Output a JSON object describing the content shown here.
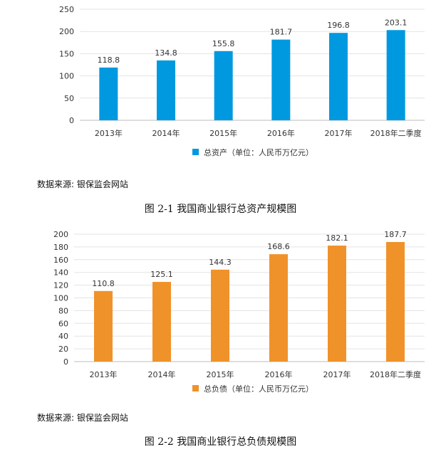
{
  "figures": [
    {
      "source": "数据来源: 银保监会网站",
      "caption": "图 2-1 我国商业银行总资产规模图"
    },
    {
      "source": "数据来源: 银保监会网站",
      "caption": "图 2-2 我国商业银行总负债规模图"
    }
  ],
  "chart_data": [
    {
      "type": "bar",
      "categories": [
        "2013年",
        "2014年",
        "2015年",
        "2016年",
        "2017年",
        "2018年二季度"
      ],
      "series": [
        {
          "name": "总资产（单位：人民币万亿元）",
          "values": [
            118.8,
            134.8,
            155.8,
            181.7,
            196.8,
            203.1
          ],
          "color": "#0099e0"
        }
      ],
      "ylim": [
        0,
        250
      ],
      "yticks": [
        0,
        50,
        100,
        150,
        200,
        250
      ],
      "grid": true,
      "legend": "bottom-center",
      "title": "",
      "xlabel": "",
      "ylabel": ""
    },
    {
      "type": "bar",
      "categories": [
        "2013年",
        "2014年",
        "2015年",
        "2016年",
        "2017年",
        "2018年二季度"
      ],
      "series": [
        {
          "name": "总负债（单位：人民币万亿元）",
          "values": [
            110.8,
            125.1,
            144.3,
            168.6,
            182.1,
            187.7
          ],
          "color": "#f0922a"
        }
      ],
      "ylim": [
        0,
        200
      ],
      "yticks": [
        0,
        20,
        40,
        60,
        80,
        100,
        120,
        140,
        160,
        180,
        200
      ],
      "grid": true,
      "legend": "bottom-center",
      "title": "",
      "xlabel": "",
      "ylabel": ""
    }
  ]
}
